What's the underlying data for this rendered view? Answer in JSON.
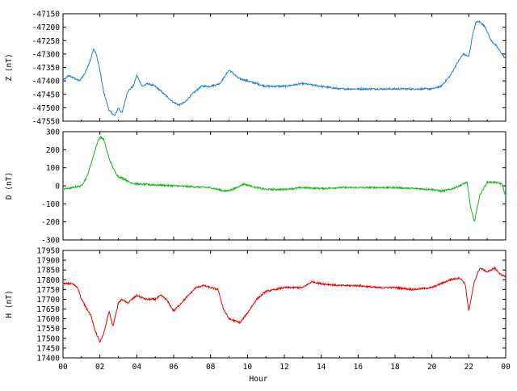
{
  "chart_data": [
    {
      "type": "line",
      "ylabel": "Z (nT)",
      "ylim": [
        -47550,
        -47150
      ],
      "yticks": [
        "-47150",
        "-47200",
        "-47250",
        "-47300",
        "-47350",
        "-47400",
        "-47450",
        "-47500",
        "-47550"
      ],
      "color": "#1e7fd8",
      "series": [
        {
          "x": [
            0,
            0.3,
            0.6,
            0.9,
            1.2,
            1.5,
            1.65,
            1.8,
            2.0,
            2.2,
            2.5,
            2.8,
            3.0,
            3.2,
            3.5,
            3.8,
            4.0,
            4.3,
            4.6,
            5.0,
            5.5,
            6.0,
            6.3,
            6.6,
            7.0,
            7.5,
            8.0,
            8.5,
            9.0,
            9.2,
            9.5,
            10.0,
            10.5,
            11,
            12,
            13,
            14,
            15,
            16,
            17,
            18,
            19,
            20,
            20.5,
            21,
            21.4,
            21.7,
            22.0,
            22.2,
            22.4,
            22.6,
            22.9,
            23.2,
            23.5,
            23.8,
            24
          ],
          "y": [
            -47400,
            -47380,
            -47390,
            -47400,
            -47370,
            -47320,
            -47280,
            -47300,
            -47360,
            -47440,
            -47510,
            -47530,
            -47500,
            -47520,
            -47440,
            -47420,
            -47380,
            -47420,
            -47410,
            -47420,
            -47450,
            -47480,
            -47490,
            -47480,
            -47450,
            -47420,
            -47420,
            -47410,
            -47360,
            -47370,
            -47390,
            -47400,
            -47410,
            -47420,
            -47420,
            -47410,
            -47420,
            -47430,
            -47430,
            -47430,
            -47430,
            -47430,
            -47430,
            -47420,
            -47380,
            -47330,
            -47300,
            -47310,
            -47230,
            -47180,
            -47180,
            -47200,
            -47250,
            -47270,
            -47300,
            -47320
          ]
        }
      ]
    },
    {
      "type": "line",
      "ylabel": "D (nT)",
      "ylim": [
        -300,
        300
      ],
      "yticks": [
        "300",
        "200",
        "100",
        "0",
        "-100",
        "-200",
        "-300"
      ],
      "color": "#14b814",
      "series": [
        {
          "x": [
            0,
            0.5,
            1.0,
            1.3,
            1.6,
            1.8,
            2.0,
            2.2,
            2.5,
            2.8,
            3.0,
            3.3,
            3.6,
            4.0,
            5,
            6,
            7,
            8,
            8.8,
            9.2,
            9.8,
            10.5,
            11,
            12,
            13,
            14,
            15,
            16,
            17,
            18,
            19,
            20,
            20.5,
            21,
            21.5,
            21.9,
            22.1,
            22.3,
            22.6,
            23.0,
            23.4,
            23.8,
            24
          ],
          "y": [
            -20,
            -10,
            0,
            50,
            150,
            220,
            270,
            260,
            150,
            80,
            50,
            40,
            20,
            10,
            5,
            0,
            -5,
            -10,
            -30,
            -20,
            10,
            -10,
            -20,
            -20,
            -10,
            -15,
            -10,
            -10,
            -10,
            -10,
            -15,
            -20,
            -30,
            -20,
            0,
            20,
            -120,
            -200,
            -50,
            20,
            20,
            10,
            -60
          ]
        }
      ]
    },
    {
      "type": "line",
      "ylabel": "H (nT)",
      "ylim": [
        17400,
        17950
      ],
      "yticks": [
        "17950",
        "17900",
        "17850",
        "17800",
        "17750",
        "17700",
        "17650",
        "17600",
        "17550",
        "17500",
        "17450",
        "17400"
      ],
      "color": "#ee0000",
      "series": [
        {
          "x": [
            0,
            0.5,
            0.8,
            1.0,
            1.3,
            1.5,
            1.7,
            2.0,
            2.2,
            2.5,
            2.7,
            3.0,
            3.2,
            3.5,
            4.0,
            4.5,
            5.0,
            5.3,
            5.6,
            6.0,
            6.4,
            6.8,
            7.2,
            7.6,
            8.0,
            8.4,
            8.7,
            9.0,
            9.3,
            9.6,
            10.0,
            10.5,
            11,
            12,
            13,
            13.5,
            14,
            15,
            16,
            17,
            18,
            19,
            20,
            20.5,
            21,
            21.5,
            21.8,
            22.0,
            22.3,
            22.6,
            23.0,
            23.4,
            23.8,
            24
          ],
          "y": [
            17780,
            17780,
            17760,
            17700,
            17650,
            17620,
            17550,
            17480,
            17520,
            17640,
            17560,
            17680,
            17700,
            17680,
            17720,
            17700,
            17700,
            17720,
            17700,
            17640,
            17680,
            17720,
            17760,
            17770,
            17760,
            17750,
            17650,
            17600,
            17590,
            17580,
            17630,
            17700,
            17740,
            17760,
            17760,
            17790,
            17780,
            17770,
            17770,
            17760,
            17760,
            17750,
            17760,
            17780,
            17800,
            17810,
            17780,
            17640,
            17790,
            17860,
            17840,
            17860,
            17820,
            17820
          ]
        }
      ]
    }
  ],
  "xaxis": {
    "xlabel": "Hour",
    "xlim": [
      0,
      24
    ],
    "ticks": [
      "00",
      "02",
      "04",
      "06",
      "08",
      "10",
      "12",
      "14",
      "16",
      "18",
      "20",
      "22",
      "00"
    ]
  }
}
